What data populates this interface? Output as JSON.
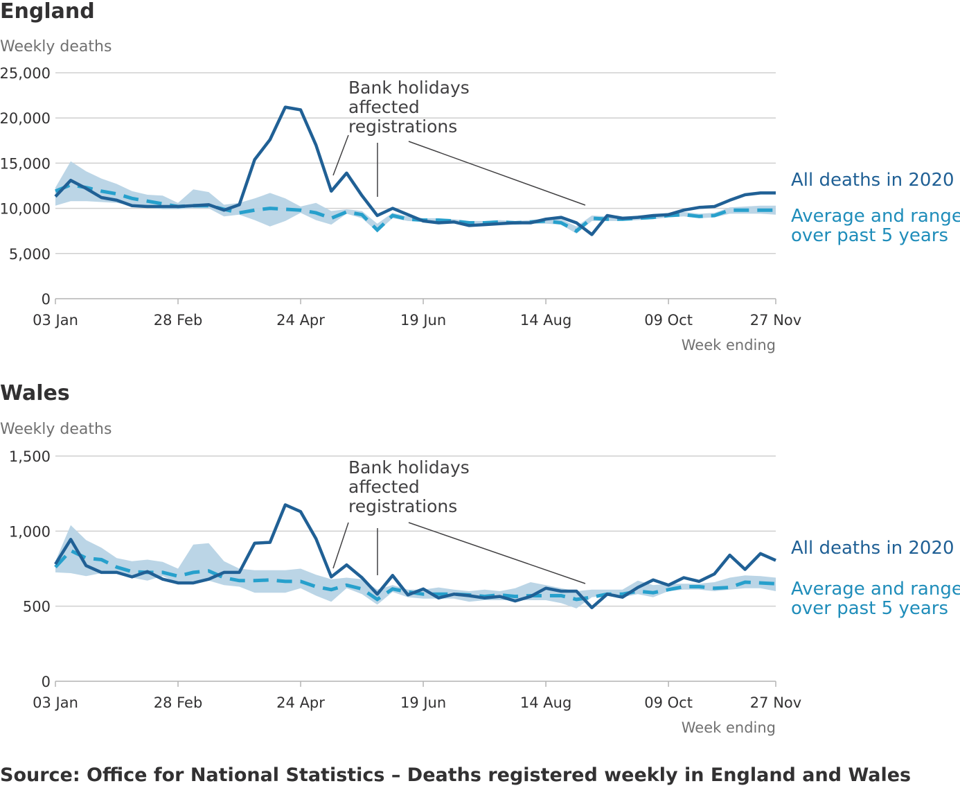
{
  "colors": {
    "all_deaths": "#206095",
    "average": "#27a0cc",
    "range": "#b7d3e5",
    "grid": "#cfcfcf",
    "annotation_line": "#414042"
  },
  "x_axis": {
    "label": "Week ending",
    "ticks": [
      "03 Jan",
      "28 Feb",
      "24 Apr",
      "19 Jun",
      "14 Aug",
      "09 Oct",
      "27 Nov"
    ]
  },
  "legend": {
    "all_deaths": "All deaths in 2020",
    "average_line1": "Average and range",
    "average_line2": "over past 5 years"
  },
  "annotation": {
    "line1": "Bank holidays",
    "line2": "affected",
    "line3": "registrations"
  },
  "source": "Source: Office for National Statistics – Deaths registered weekly in England and Wales",
  "chart_data": [
    {
      "type": "line",
      "title": "England",
      "ylabel": "Weekly deaths",
      "xlabel": "Week ending",
      "ylim": [
        0,
        25000
      ],
      "yticks": [
        0,
        5000,
        10000,
        15000,
        20000,
        25000
      ],
      "ytick_labels": [
        "0",
        "5,000",
        "10,000",
        "15,000",
        "20,000",
        "25,000"
      ],
      "x_tick_labels": [
        "03 Jan",
        "28 Feb",
        "24 Apr",
        "19 Jun",
        "14 Aug",
        "09 Oct",
        "27 Nov"
      ],
      "x_tick_week_index": [
        0,
        8,
        16,
        24,
        32,
        40,
        47
      ],
      "series": [
        {
          "name": "All deaths in 2020",
          "values": [
            11300,
            13100,
            12200,
            11200,
            10900,
            10300,
            10200,
            10200,
            10200,
            10300,
            10400,
            9800,
            10400,
            15400,
            17600,
            21200,
            20900,
            17000,
            11900,
            13900,
            11400,
            9200,
            10000,
            9300,
            8600,
            8400,
            8500,
            8100,
            8200,
            8300,
            8400,
            8400,
            8800,
            9000,
            8400,
            7100,
            9200,
            8900,
            9000,
            9200,
            9300,
            9800,
            10100,
            10200,
            10900,
            11500,
            11700,
            11700
          ]
        },
        {
          "name": "Average and range over past 5 years",
          "values": [
            11900,
            12600,
            12300,
            11900,
            11600,
            11100,
            10800,
            10500,
            10200,
            10300,
            10300,
            9900,
            9500,
            9800,
            10000,
            9900,
            9800,
            9500,
            8900,
            9600,
            9300,
            7600,
            9200,
            8800,
            8700,
            8700,
            8600,
            8400,
            8400,
            8500,
            8400,
            8500,
            8600,
            8400,
            7500,
            8900,
            8800,
            8800,
            8900,
            9000,
            9200,
            9300,
            9100,
            9200,
            9800,
            9800,
            9800,
            9800
          ],
          "range_low": [
            10300,
            10800,
            10800,
            10700,
            10600,
            10300,
            10100,
            9900,
            9900,
            10000,
            10000,
            9100,
            9300,
            8700,
            8000,
            8600,
            9500,
            8700,
            8200,
            9400,
            8900,
            7400,
            8900,
            8600,
            8500,
            8500,
            8400,
            8100,
            8200,
            8300,
            8200,
            8300,
            8300,
            8200,
            7200,
            8600,
            8600,
            8600,
            8700,
            8800,
            9000,
            9100,
            8900,
            9000,
            9400,
            9400,
            9400,
            9300
          ],
          "range_high": [
            12300,
            15200,
            14100,
            13300,
            12700,
            11900,
            11500,
            11400,
            10600,
            12100,
            11800,
            10400,
            10600,
            11100,
            11700,
            11100,
            10200,
            10600,
            9700,
            9900,
            9700,
            8300,
            9500,
            9100,
            8900,
            8900,
            8800,
            8600,
            8600,
            8700,
            8600,
            8700,
            8900,
            8800,
            8000,
            9200,
            9100,
            9000,
            9200,
            9300,
            9500,
            9600,
            9400,
            9500,
            10100,
            10200,
            10300,
            10300
          ]
        }
      ]
    },
    {
      "type": "line",
      "title": "Wales",
      "ylabel": "Weekly deaths",
      "xlabel": "Week ending",
      "ylim": [
        0,
        1500
      ],
      "yticks": [
        0,
        500,
        1000,
        1500
      ],
      "ytick_labels": [
        "0",
        "500",
        "1,000",
        "1,500"
      ],
      "x_tick_labels": [
        "03 Jan",
        "28 Feb",
        "24 Apr",
        "19 Jun",
        "14 Aug",
        "09 Oct",
        "27 Nov"
      ],
      "x_tick_week_index": [
        0,
        8,
        16,
        24,
        32,
        40,
        47
      ],
      "series": [
        {
          "name": "All deaths in 2020",
          "values": [
            780,
            945,
            770,
            725,
            725,
            695,
            730,
            680,
            655,
            655,
            680,
            725,
            725,
            920,
            925,
            1175,
            1130,
            950,
            695,
            775,
            690,
            580,
            705,
            575,
            615,
            555,
            580,
            570,
            555,
            565,
            535,
            565,
            620,
            600,
            600,
            490,
            580,
            560,
            625,
            675,
            640,
            690,
            665,
            715,
            840,
            745,
            850,
            805
          ]
        },
        {
          "name": "Average and range over past 5 years",
          "values": [
            760,
            870,
            820,
            810,
            760,
            730,
            725,
            725,
            700,
            725,
            735,
            690,
            670,
            670,
            675,
            665,
            665,
            630,
            610,
            640,
            615,
            545,
            615,
            595,
            580,
            580,
            580,
            575,
            565,
            575,
            565,
            570,
            570,
            570,
            545,
            560,
            580,
            580,
            600,
            590,
            610,
            630,
            630,
            620,
            625,
            660,
            655,
            650
          ],
          "range_low": [
            725,
            720,
            700,
            720,
            730,
            690,
            670,
            700,
            655,
            650,
            670,
            640,
            630,
            590,
            590,
            590,
            620,
            570,
            530,
            620,
            580,
            510,
            595,
            560,
            550,
            550,
            550,
            530,
            540,
            540,
            540,
            540,
            540,
            520,
            485,
            560,
            570,
            560,
            580,
            560,
            600,
            610,
            610,
            600,
            610,
            620,
            620,
            600
          ],
          "range_high": [
            800,
            1040,
            940,
            890,
            820,
            800,
            810,
            795,
            750,
            910,
            920,
            800,
            750,
            740,
            740,
            740,
            750,
            710,
            680,
            690,
            680,
            610,
            640,
            610,
            610,
            625,
            610,
            600,
            610,
            600,
            620,
            660,
            640,
            620,
            600,
            610,
            610,
            610,
            670,
            640,
            650,
            650,
            650,
            660,
            690,
            705,
            700,
            690
          ]
        }
      ]
    }
  ]
}
